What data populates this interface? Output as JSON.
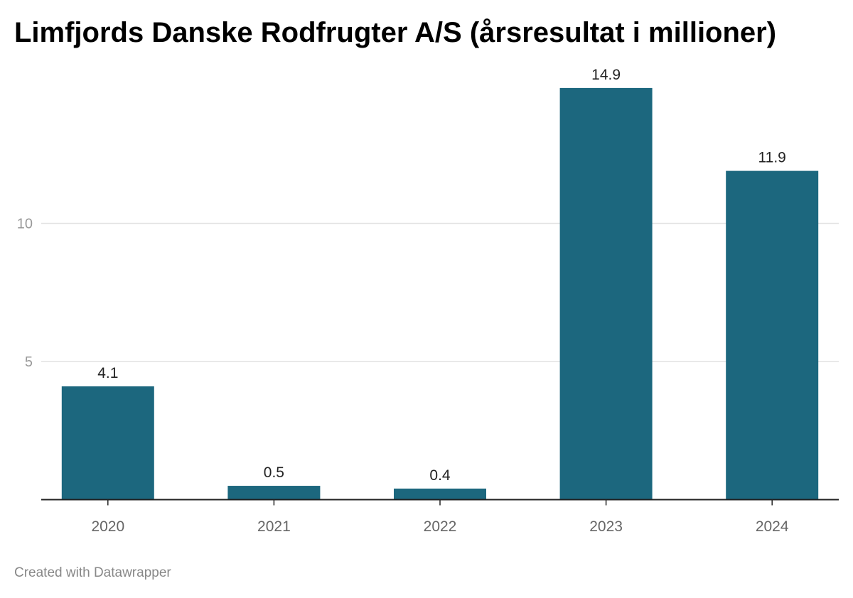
{
  "title": "Limfjords Danske Rodfrugter A/S (årsresultat i millioner)",
  "footer": "Created with Datawrapper",
  "colors": {
    "bar": "#1c677e",
    "grid": "#e2e2e2",
    "axis": "#222222",
    "tick_text": "#999999",
    "category_text": "#666666",
    "value_text": "#222222"
  },
  "chart_data": {
    "type": "bar",
    "categories": [
      "2020",
      "2021",
      "2022",
      "2023",
      "2024"
    ],
    "values": [
      4.1,
      0.5,
      0.4,
      14.9,
      11.9
    ],
    "value_labels": [
      "4.1",
      "0.5",
      "0.4",
      "14.9",
      "11.9"
    ],
    "y_ticks": [
      5,
      10
    ],
    "ylim": [
      0,
      15
    ],
    "grid": true,
    "xlabel": "",
    "ylabel": ""
  }
}
